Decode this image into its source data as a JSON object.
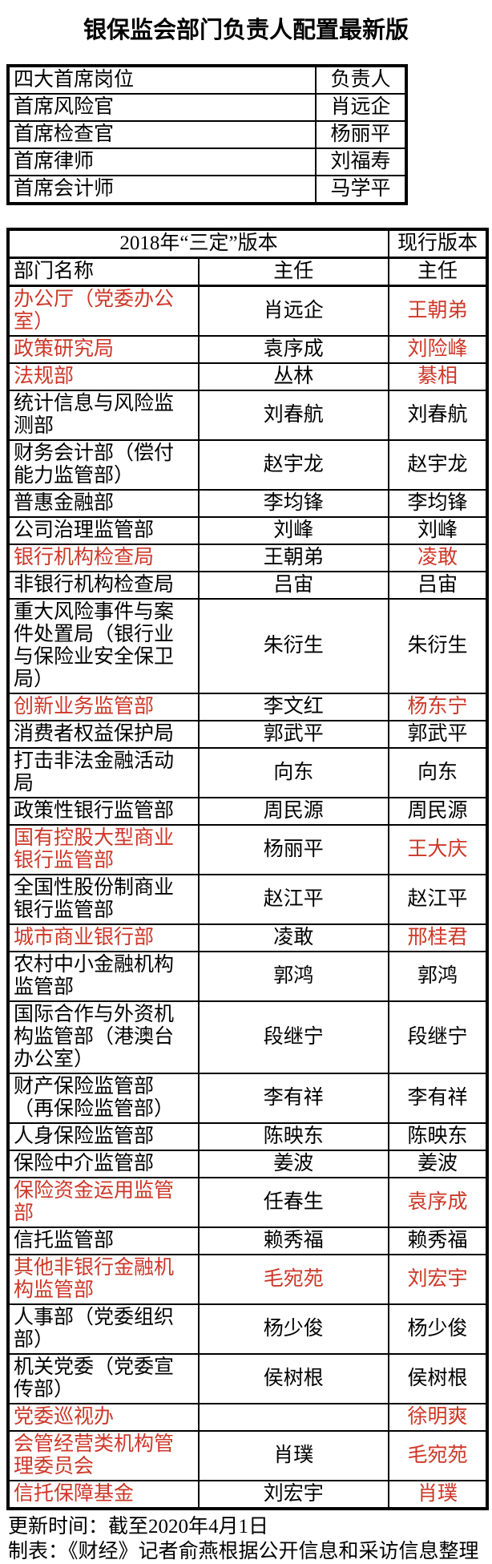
{
  "title": "银保监会部门负责人配置最新版",
  "colors": {
    "red": "#cd3728",
    "text": "#000000",
    "background": "#ffffff"
  },
  "chief_table": {
    "header": {
      "position": "四大首席岗位",
      "person": "负责人"
    },
    "rows": [
      {
        "position": "首席风险官",
        "person": "肖远企"
      },
      {
        "position": "首席检查官",
        "person": "杨丽平"
      },
      {
        "position": "首席律师",
        "person": "刘福寿"
      },
      {
        "position": "首席会计师",
        "person": "马学平"
      }
    ]
  },
  "main_table": {
    "header": {
      "version_2018": "2018年“三定”版本",
      "version_current": "现行版本",
      "dept": "部门名称",
      "director_2018": "主任",
      "director_current": "主任"
    },
    "rows": [
      {
        "dept": "办公厅（党委办公室）",
        "dept_red": true,
        "d2018": "肖远企",
        "d2018_red": false,
        "dcur": "王朝弟",
        "dcur_red": true
      },
      {
        "dept": "政策研究局",
        "dept_red": true,
        "d2018": "袁序成",
        "d2018_red": false,
        "dcur": "刘险峰",
        "dcur_red": true
      },
      {
        "dept": "法规部",
        "dept_red": true,
        "d2018": "丛林",
        "d2018_red": false,
        "dcur": "綦相",
        "dcur_red": true
      },
      {
        "dept": "统计信息与风险监测部",
        "dept_red": false,
        "d2018": "刘春航",
        "d2018_red": false,
        "dcur": "刘春航",
        "dcur_red": false
      },
      {
        "dept": "财务会计部（偿付能力监管部）",
        "dept_red": false,
        "d2018": "赵宇龙",
        "d2018_red": false,
        "dcur": "赵宇龙",
        "dcur_red": false
      },
      {
        "dept": "普惠金融部",
        "dept_red": false,
        "d2018": "李均锋",
        "d2018_red": false,
        "dcur": "李均锋",
        "dcur_red": false
      },
      {
        "dept": "公司治理监管部",
        "dept_red": false,
        "d2018": "刘峰",
        "d2018_red": false,
        "dcur": "刘峰",
        "dcur_red": false
      },
      {
        "dept": "银行机构检查局",
        "dept_red": true,
        "d2018": "王朝弟",
        "d2018_red": false,
        "dcur": "凌敢",
        "dcur_red": true
      },
      {
        "dept": "非银行机构检查局",
        "dept_red": false,
        "d2018": "吕宙",
        "d2018_red": false,
        "dcur": "吕宙",
        "dcur_red": false
      },
      {
        "dept": "重大风险事件与案件处置局（银行业与保险业安全保卫局）",
        "dept_red": false,
        "d2018": "朱衍生",
        "d2018_red": false,
        "dcur": "朱衍生",
        "dcur_red": false
      },
      {
        "dept": "创新业务监管部",
        "dept_red": true,
        "d2018": "李文红",
        "d2018_red": false,
        "dcur": "杨东宁",
        "dcur_red": true
      },
      {
        "dept": "消费者权益保护局",
        "dept_red": false,
        "d2018": "郭武平",
        "d2018_red": false,
        "dcur": "郭武平",
        "dcur_red": false
      },
      {
        "dept": "打击非法金融活动局",
        "dept_red": false,
        "d2018": "向东",
        "d2018_red": false,
        "dcur": "向东",
        "dcur_red": false
      },
      {
        "dept": "政策性银行监管部",
        "dept_red": false,
        "d2018": "周民源",
        "d2018_red": false,
        "dcur": "周民源",
        "dcur_red": false
      },
      {
        "dept": "国有控股大型商业银行监管部",
        "dept_red": true,
        "d2018": "杨丽平",
        "d2018_red": false,
        "dcur": "王大庆",
        "dcur_red": true
      },
      {
        "dept": "全国性股份制商业银行监管部",
        "dept_red": false,
        "d2018": "赵江平",
        "d2018_red": false,
        "dcur": "赵江平",
        "dcur_red": false
      },
      {
        "dept": "城市商业银行部",
        "dept_red": true,
        "d2018": "凌敢",
        "d2018_red": false,
        "dcur": "邢桂君",
        "dcur_red": true
      },
      {
        "dept": "农村中小金融机构监管部",
        "dept_red": false,
        "d2018": "郭鸿",
        "d2018_red": false,
        "dcur": "郭鸿",
        "dcur_red": false
      },
      {
        "dept": "国际合作与外资机构监管部（港澳台办公室）",
        "dept_red": false,
        "d2018": "段继宁",
        "d2018_red": false,
        "dcur": "段继宁",
        "dcur_red": false
      },
      {
        "dept": "财产保险监管部（再保险监管部）",
        "dept_red": false,
        "d2018": "李有祥",
        "d2018_red": false,
        "dcur": "李有祥",
        "dcur_red": false
      },
      {
        "dept": "人身保险监管部",
        "dept_red": false,
        "d2018": "陈映东",
        "d2018_red": false,
        "dcur": "陈映东",
        "dcur_red": false
      },
      {
        "dept": "保险中介监管部",
        "dept_red": false,
        "d2018": "姜波",
        "d2018_red": false,
        "dcur": "姜波",
        "dcur_red": false
      },
      {
        "dept": "保险资金运用监管部",
        "dept_red": true,
        "d2018": "任春生",
        "d2018_red": false,
        "dcur": "袁序成",
        "dcur_red": true
      },
      {
        "dept": "信托监管部",
        "dept_red": false,
        "d2018": "赖秀福",
        "d2018_red": false,
        "dcur": "赖秀福",
        "dcur_red": false
      },
      {
        "dept": "其他非银行金融机构监管部",
        "dept_red": true,
        "d2018": "毛宛苑",
        "d2018_red": true,
        "dcur": "刘宏宇",
        "dcur_red": true
      },
      {
        "dept": "人事部（党委组织部）",
        "dept_red": false,
        "d2018": "杨少俊",
        "d2018_red": false,
        "dcur": "杨少俊",
        "dcur_red": false
      },
      {
        "dept": "机关党委（党委宣传部）",
        "dept_red": false,
        "d2018": "侯树根",
        "d2018_red": false,
        "dcur": "侯树根",
        "dcur_red": false
      },
      {
        "dept": "党委巡视办",
        "dept_red": true,
        "d2018": "",
        "d2018_red": false,
        "dcur": "徐明爽",
        "dcur_red": true
      },
      {
        "dept": "会管经营类机构管理委员会",
        "dept_red": true,
        "d2018": "肖璞",
        "d2018_red": false,
        "dcur": "毛宛苑",
        "dcur_red": true
      },
      {
        "dept": "信托保障基金",
        "dept_red": true,
        "d2018": "刘宏宇",
        "d2018_red": false,
        "dcur": "肖璞",
        "dcur_red": true
      }
    ]
  },
  "footer": {
    "line1": "更新时间：截至2020年4月1日",
    "line2": "制表：《财经》记者俞燕根据公开信息和采访信息整理"
  }
}
